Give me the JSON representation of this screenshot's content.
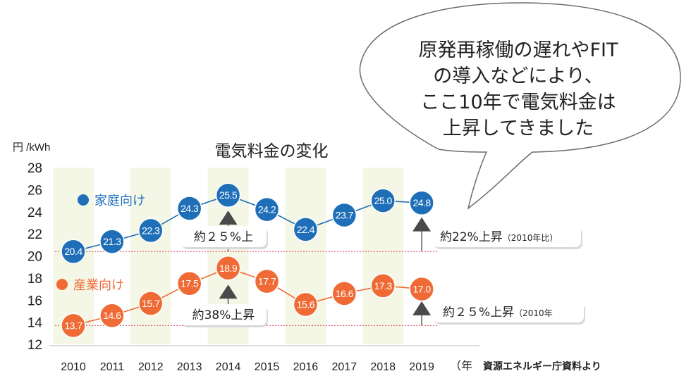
{
  "chart_data": {
    "type": "line",
    "title": "電気料金の変化",
    "ylabel": "円 /kWh",
    "xunit": "（年",
    "source": "資源エネルギー庁資料より",
    "x": [
      "2010",
      "2011",
      "2012",
      "2013",
      "2014",
      "2015",
      "2016",
      "2017",
      "2018",
      "2019"
    ],
    "ylim": [
      12,
      28
    ],
    "yticks": [
      "12",
      "14",
      "16",
      "18",
      "20",
      "22",
      "24",
      "26",
      "28"
    ],
    "series": [
      {
        "name": "家庭向け",
        "color": "#1f6fb8",
        "values": [
          20.4,
          21.3,
          22.3,
          24.3,
          25.5,
          24.2,
          22.4,
          23.7,
          25.0,
          24.8
        ],
        "labels": [
          "20.4",
          "21.3",
          "22.3",
          "24.3",
          "25.5",
          "24.2",
          "22.4",
          "23.7",
          "25.0",
          "24.8"
        ]
      },
      {
        "name": "産業向け",
        "color": "#ef6a35",
        "values": [
          13.7,
          14.6,
          15.7,
          17.5,
          18.9,
          17.7,
          15.6,
          16.6,
          17.3,
          17.0
        ],
        "labels": [
          "13.7",
          "14.6",
          "15.7",
          "17.5",
          "18.9",
          "17.7",
          "15.6",
          "16.6",
          "17.3",
          "17.0"
        ]
      }
    ],
    "annotations": [
      {
        "text": "約２５%上",
        "series": 0,
        "index": 4
      },
      {
        "text": "約22%上昇",
        "suffix": "（2010年比）",
        "series": 0,
        "index": 9
      },
      {
        "text": "約38%上昇",
        "series": 1,
        "index": 4
      },
      {
        "text": "約２５%上昇",
        "suffix": "（2010年",
        "series": 1,
        "index": 9
      }
    ],
    "baselines": [
      20.4,
      13.7
    ],
    "grid": false,
    "band_color": "#f4f7e6",
    "arrow_color": "#5b5b5b",
    "legend_position": "left, beside each series"
  },
  "callout": {
    "lines": [
      "原発再稼働の遅れやFIT",
      "の導入などにより、",
      "ここ10年で電気料金は",
      "上昇してきました"
    ]
  }
}
